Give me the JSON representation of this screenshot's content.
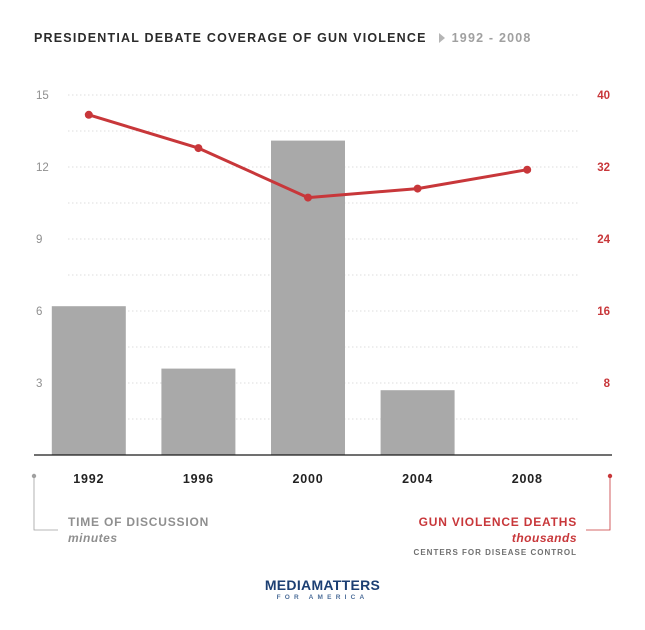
{
  "title": {
    "main": "PRESIDENTIAL DEBATE COVERAGE OF GUN VIOLENCE",
    "range": "1992 - 2008"
  },
  "colors": {
    "bar": "#a9a9a9",
    "line": "#c8373a",
    "left_axis_text": "#8f8f8f",
    "right_axis_text": "#c8373a",
    "grid": "#bdbdbd",
    "baseline": "#1a1a1a",
    "brand": "#1c3f73"
  },
  "legend": {
    "left": {
      "label": "TIME OF DISCUSSION",
      "unit": "minutes"
    },
    "right": {
      "label": "GUN VIOLENCE DEATHS",
      "unit": "thousands",
      "source": "CENTERS FOR DISEASE CONTROL"
    }
  },
  "logo": {
    "part1": "MEDIA",
    "part2": "MATTERS",
    "sub": "FOR AMERICA"
  },
  "chart_data": {
    "type": "bar",
    "categories": [
      "1992",
      "1996",
      "2000",
      "2004",
      "2008"
    ],
    "series": [
      {
        "name": "TIME OF DISCUSSION",
        "type": "bar",
        "axis": "left",
        "values": [
          6.2,
          3.6,
          13.1,
          2.7,
          0
        ]
      },
      {
        "name": "GUN VIOLENCE DEATHS",
        "type": "line",
        "axis": "right",
        "values": [
          37.8,
          34.1,
          28.6,
          29.6,
          31.7
        ]
      }
    ],
    "y_left": {
      "label": "minutes",
      "lim": [
        0,
        15
      ],
      "ticks": [
        3,
        6,
        9,
        12,
        15
      ]
    },
    "y_right": {
      "label": "thousands",
      "lim": [
        0,
        40
      ],
      "ticks": [
        8,
        16,
        24,
        32,
        40
      ]
    },
    "grid": true
  }
}
